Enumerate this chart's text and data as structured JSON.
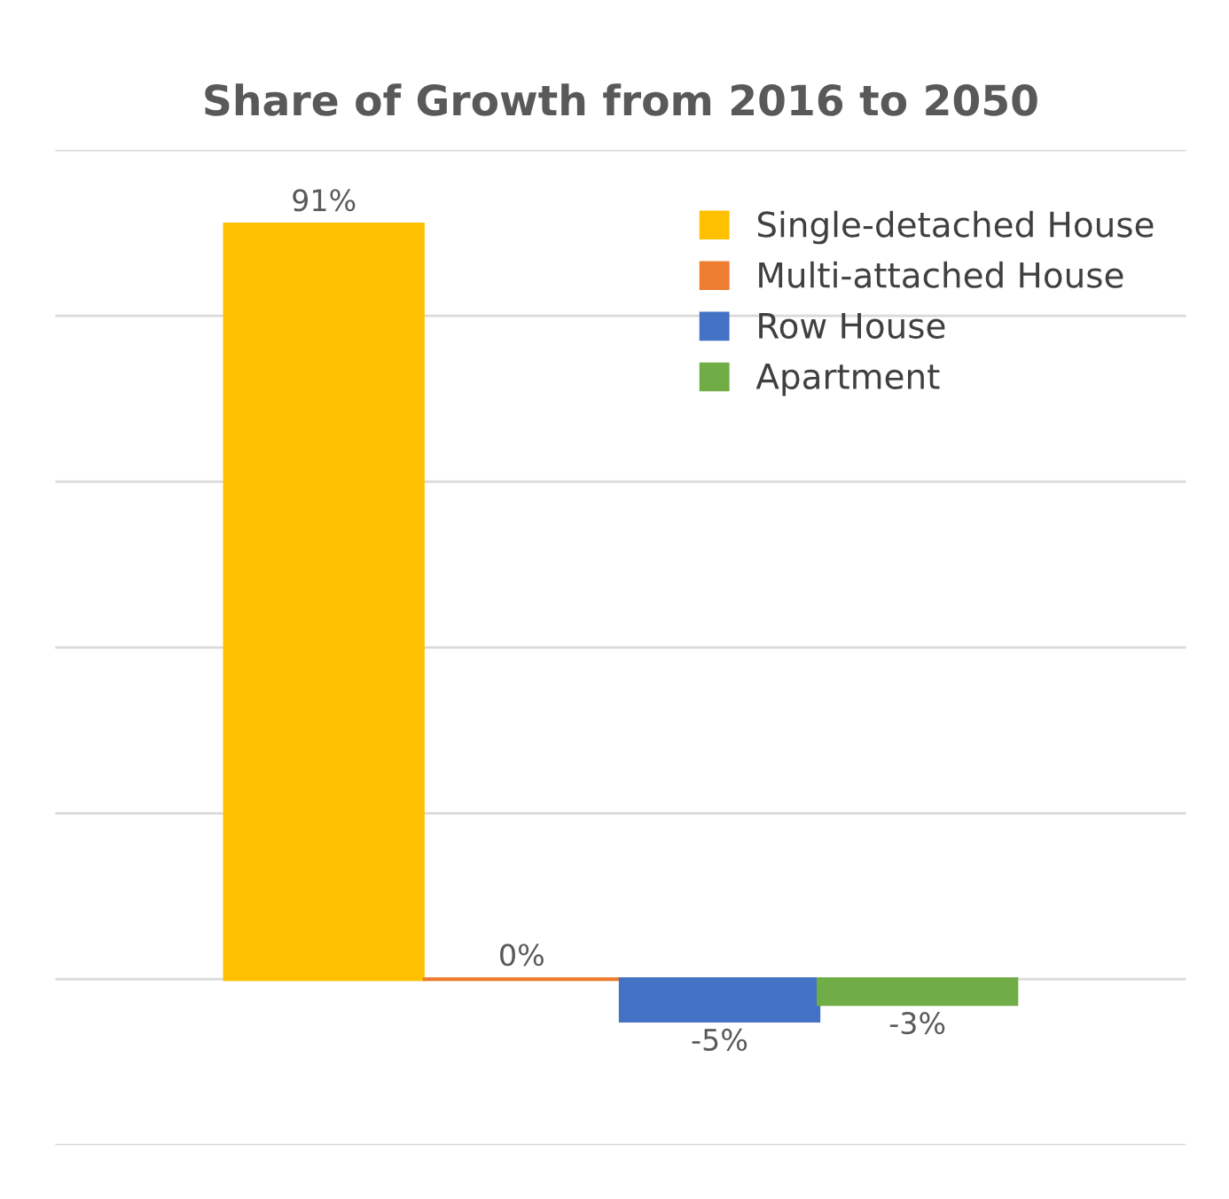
{
  "chart_data": {
    "type": "bar",
    "title": "Share of Growth from 2016 to 2050",
    "categories": [
      null
    ],
    "series": [
      {
        "name": "Single-detached House",
        "color": "#ffc000",
        "values": [
          91
        ],
        "value_labels": [
          "91%"
        ]
      },
      {
        "name": "Multi-attached House",
        "color": "#ed7d31",
        "values": [
          0
        ],
        "value_labels": [
          "0%"
        ]
      },
      {
        "name": "Row House",
        "color": "#4472c4",
        "values": [
          -5
        ],
        "value_labels": [
          "-5%"
        ]
      },
      {
        "name": "Apartment",
        "color": "#70ad47",
        "values": [
          -3
        ],
        "value_labels": [
          "-3%"
        ]
      }
    ],
    "ylim": [
      -20,
      100
    ],
    "yticks": [
      {
        "value": -20,
        "label": null
      },
      {
        "value": 0,
        "label": null
      },
      {
        "value": 20,
        "label": null
      },
      {
        "value": 40,
        "label": null
      },
      {
        "value": 60,
        "label": null
      },
      {
        "value": 80,
        "label": null
      },
      {
        "value": 100,
        "label": null
      }
    ],
    "grid": "y",
    "legend": "top right"
  }
}
